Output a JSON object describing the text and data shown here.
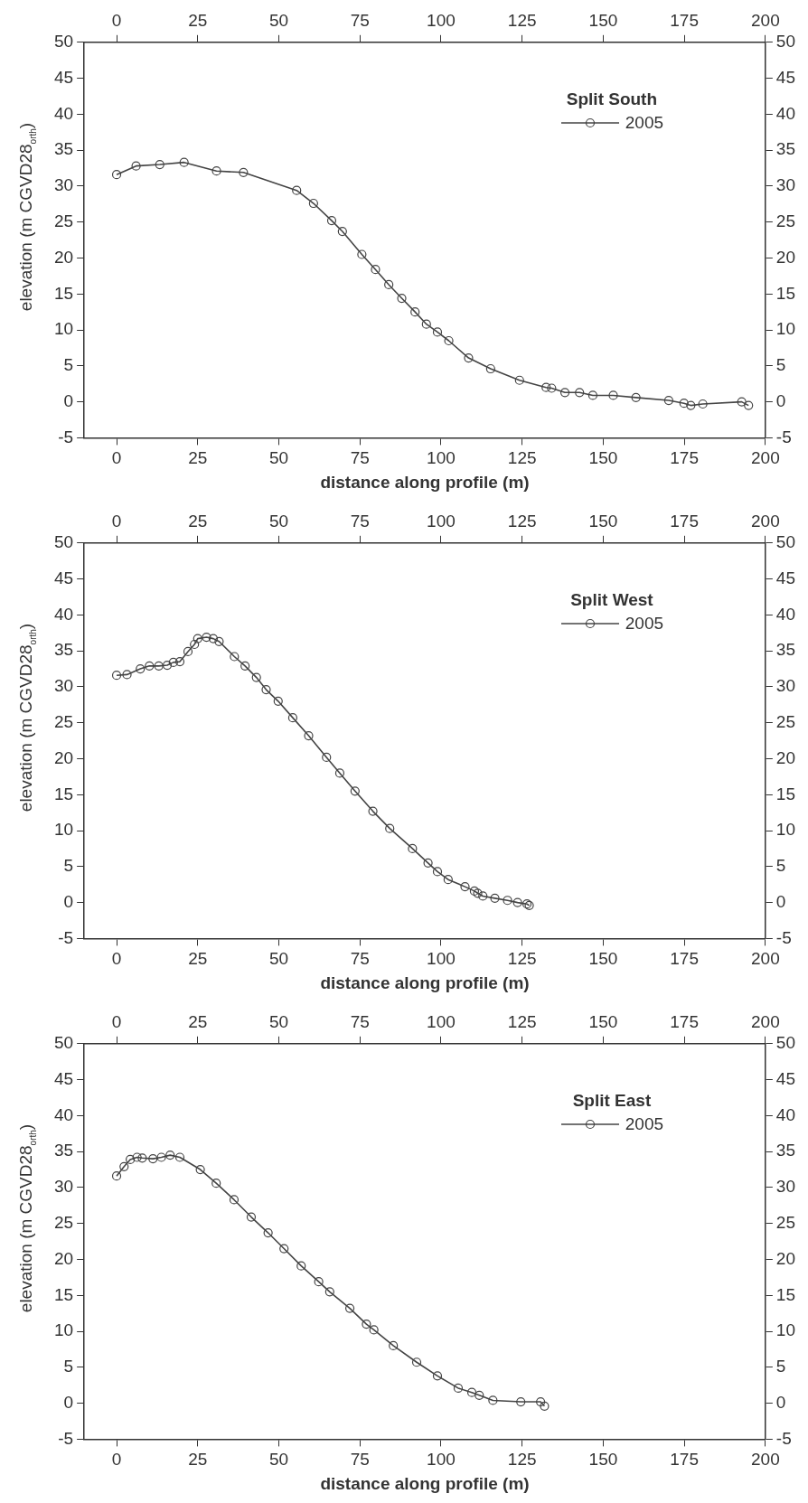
{
  "chart_data": [
    {
      "type": "line",
      "xlabel": "distance along profile (m)",
      "ylabel": "elevation (m CGVD28$_{orth}$)",
      "legend_title": "Split South",
      "legend": "top right",
      "marker": "circle",
      "grid": false,
      "x": [
        0,
        6,
        13.3,
        20.8,
        30.8,
        39.1,
        55.5,
        60.7,
        66.3,
        69.6,
        75.6,
        79.8,
        83.9,
        87.9,
        92,
        95.5,
        98.9,
        102.4,
        108.5,
        115.3,
        124.2,
        132.4,
        134.1,
        138.2,
        142.7,
        146.8,
        153.1,
        160.1,
        170.2,
        174.9,
        177,
        180.7,
        192.7,
        194.8
      ],
      "series": [
        {
          "name": "2005",
          "color": "#444444",
          "values": [
            31.6,
            32.8,
            33.0,
            33.3,
            32.1,
            31.9,
            29.4,
            27.6,
            25.2,
            23.7,
            20.5,
            18.4,
            16.3,
            14.4,
            12.5,
            10.8,
            9.7,
            8.5,
            6.1,
            4.6,
            3.0,
            2.0,
            1.9,
            1.3,
            1.3,
            0.9,
            0.9,
            0.6,
            0.2,
            -0.2,
            -0.5,
            -0.3,
            0,
            -0.5
          ]
        }
      ],
      "xlim": [
        -10,
        200
      ],
      "xticks": [
        0,
        25,
        50,
        75,
        100,
        125,
        150,
        175,
        200
      ],
      "x2lim": [
        -10,
        200
      ],
      "x2ticks": [
        0,
        25,
        50,
        75,
        100,
        125,
        150,
        175,
        200
      ],
      "ylim": [
        -5,
        50
      ],
      "yticks": [
        -5,
        0,
        5,
        10,
        15,
        20,
        25,
        30,
        35,
        40,
        45,
        50
      ],
      "y2lim": [
        -5,
        50
      ],
      "y2ticks": [
        -5,
        0,
        5,
        10,
        15,
        20,
        25,
        30,
        35,
        40,
        45,
        50
      ]
    },
    {
      "type": "line",
      "xlabel": "distance along profile (m)",
      "ylabel": "elevation (m CGVD28$_{orth}$)",
      "legend_title": "Split West",
      "legend": "top right",
      "marker": "circle",
      "grid": false,
      "x": [
        0,
        3.2,
        7.3,
        10.1,
        13,
        15.6,
        17.5,
        19.5,
        22,
        24,
        25,
        27.7,
        29.8,
        31.6,
        36.3,
        39.6,
        43.1,
        46.1,
        49.8,
        54.3,
        59.2,
        64.7,
        68.8,
        73.5,
        79,
        84.2,
        91.2,
        96,
        98.9,
        102.2,
        107.4,
        110.3,
        111.3,
        112.9,
        116.6,
        120.5,
        123.6,
        126.5,
        127.2
      ],
      "series": [
        {
          "name": "2005",
          "color": "#444444",
          "values": [
            31.6,
            31.7,
            32.5,
            32.9,
            32.9,
            33.0,
            33.4,
            33.5,
            34.9,
            35.9,
            36.7,
            36.9,
            36.7,
            36.3,
            34.2,
            32.9,
            31.3,
            29.6,
            28.0,
            25.7,
            23.2,
            20.2,
            18.0,
            15.5,
            12.7,
            10.3,
            7.5,
            5.5,
            4.3,
            3.2,
            2.2,
            1.6,
            1.3,
            0.9,
            0.6,
            0.3,
            0,
            -0.2,
            -0.4
          ]
        }
      ],
      "xlim": [
        -10,
        200
      ],
      "xticks": [
        0,
        25,
        50,
        75,
        100,
        125,
        150,
        175,
        200
      ],
      "x2lim": [
        -10,
        200
      ],
      "x2ticks": [
        0,
        25,
        50,
        75,
        100,
        125,
        150,
        175,
        200
      ],
      "ylim": [
        -5,
        50
      ],
      "yticks": [
        -5,
        0,
        5,
        10,
        15,
        20,
        25,
        30,
        35,
        40,
        45,
        50
      ],
      "y2lim": [
        -5,
        50
      ],
      "y2ticks": [
        -5,
        0,
        5,
        10,
        15,
        20,
        25,
        30,
        35,
        40,
        45,
        50
      ]
    },
    {
      "type": "line",
      "xlabel": "distance along profile (m)",
      "ylabel": "elevation (m CGVD28$_{orth}$)",
      "legend_title": "Split East",
      "legend": "top right",
      "marker": "circle",
      "grid": false,
      "x": [
        0,
        2.3,
        4.2,
        6.3,
        7.9,
        11.2,
        13.8,
        16.5,
        19.5,
        25.8,
        30.7,
        36.2,
        41.5,
        46.7,
        51.6,
        56.9,
        62.3,
        65.7,
        71.9,
        77,
        79.3,
        85.3,
        92.5,
        98.9,
        105.3,
        109.5,
        111.8,
        116,
        124.6,
        130.7,
        131.9
      ],
      "series": [
        {
          "name": "2005",
          "color": "#444444",
          "values": [
            31.6,
            32.9,
            33.9,
            34.2,
            34.1,
            34.0,
            34.2,
            34.5,
            34.2,
            32.5,
            30.6,
            28.3,
            25.9,
            23.7,
            21.5,
            19.1,
            16.9,
            15.5,
            13.2,
            11.0,
            10.2,
            8.0,
            5.7,
            3.8,
            2.1,
            1.5,
            1.1,
            0.4,
            0.2,
            0.2,
            -0.4
          ]
        }
      ],
      "xlim": [
        -10,
        200
      ],
      "xticks": [
        0,
        25,
        50,
        75,
        100,
        125,
        150,
        175,
        200
      ],
      "x2lim": [
        -10,
        200
      ],
      "x2ticks": [
        0,
        25,
        50,
        75,
        100,
        125,
        150,
        175,
        200
      ],
      "ylim": [
        -5,
        50
      ],
      "yticks": [
        -5,
        0,
        5,
        10,
        15,
        20,
        25,
        30,
        35,
        40,
        45,
        50
      ],
      "y2lim": [
        -5,
        50
      ],
      "y2ticks": [
        -5,
        0,
        5,
        10,
        15,
        20,
        25,
        30,
        35,
        40,
        45,
        50
      ]
    }
  ]
}
